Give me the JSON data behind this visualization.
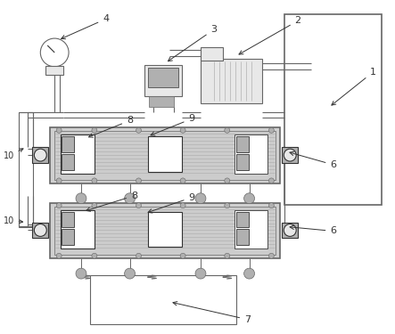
{
  "bg_color": "#ffffff",
  "lc": "#666666",
  "dc": "#333333",
  "gray1": "#cccccc",
  "gray2": "#b0b0b0",
  "gray3": "#e8e8e8",
  "gray4": "#d0d0d0"
}
